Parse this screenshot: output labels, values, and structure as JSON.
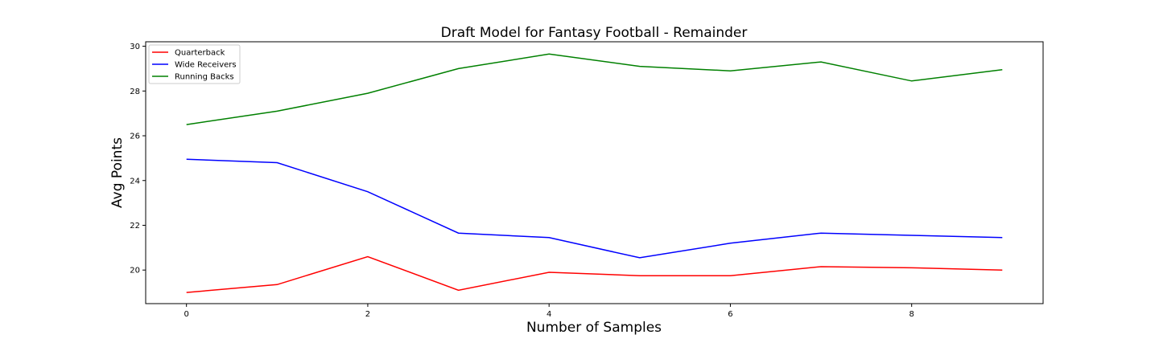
{
  "chart_data": {
    "type": "line",
    "title": "Draft Model for Fantasy Football - Remainder",
    "xlabel": "Number of Samples",
    "ylabel": "Avg Points",
    "x": [
      0,
      1,
      2,
      3,
      4,
      5,
      6,
      7,
      8,
      9
    ],
    "xlim": [
      -0.45,
      9.45
    ],
    "ylim": [
      18.5,
      30.2
    ],
    "xticks": [
      0,
      2,
      4,
      6,
      8
    ],
    "yticks": [
      20,
      22,
      24,
      26,
      28,
      30
    ],
    "grid": false,
    "legend_position": "upper-left",
    "series": [
      {
        "name": "Quarterback",
        "color": "#ff0000",
        "values": [
          19.0,
          19.35,
          20.6,
          19.1,
          19.9,
          19.75,
          19.75,
          20.15,
          20.1,
          20.0
        ]
      },
      {
        "name": "Wide Receivers",
        "color": "#0000ff",
        "values": [
          24.95,
          24.8,
          23.5,
          21.65,
          21.45,
          20.55,
          21.2,
          21.65,
          21.55,
          21.45
        ]
      },
      {
        "name": "Running Backs",
        "color": "#008000",
        "values": [
          26.5,
          27.1,
          27.9,
          29.0,
          29.65,
          29.1,
          28.9,
          29.3,
          28.45,
          28.95
        ]
      }
    ]
  }
}
